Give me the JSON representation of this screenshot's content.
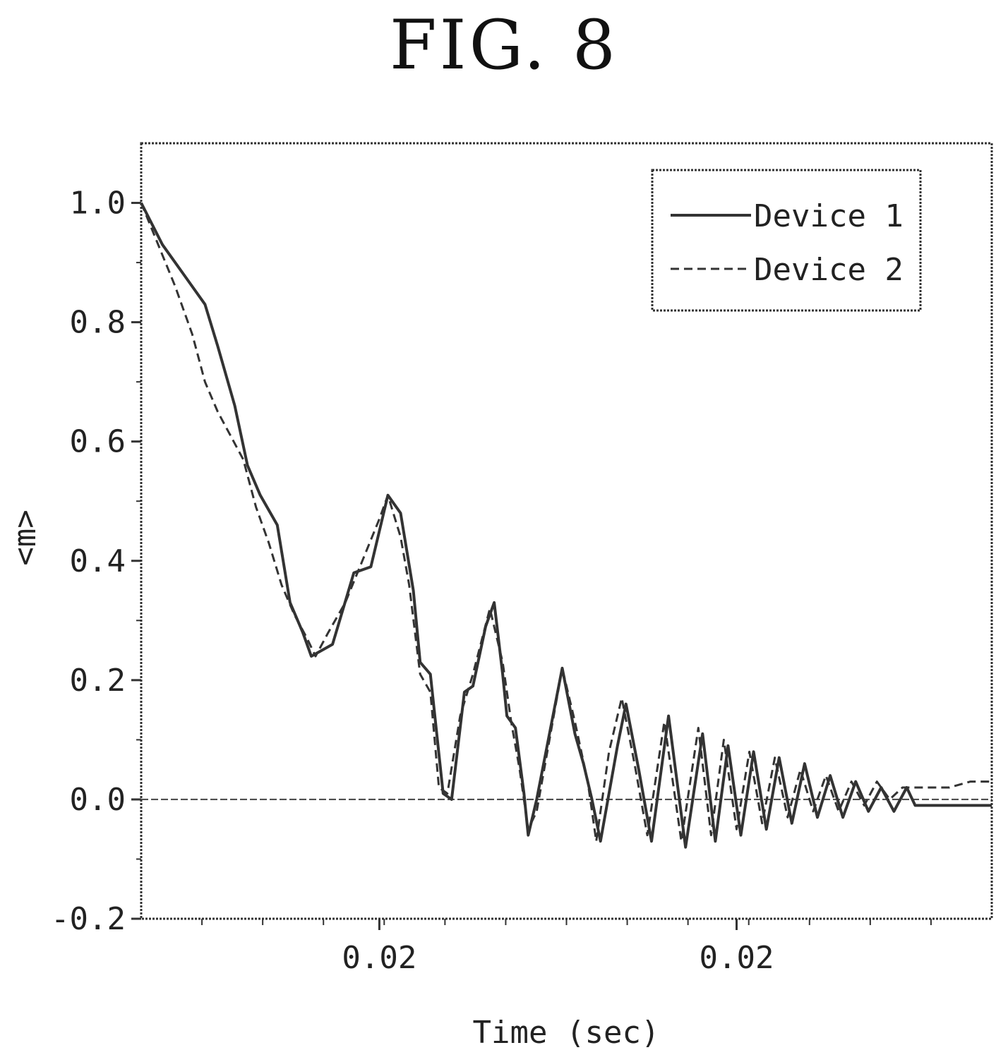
{
  "figure_title": "FIG. 8",
  "chart_data": {
    "type": "line",
    "xlabel": "Time (sec)",
    "ylabel": "<m>",
    "xlim": [
      0,
      100
    ],
    "ylim": [
      -0.2,
      1.1
    ],
    "x_ticks": [
      {
        "x": 28,
        "label": "0.02"
      },
      {
        "x": 70,
        "label": "0.02"
      }
    ],
    "y_ticks": [
      -0.2,
      0.0,
      0.2,
      0.4,
      0.6,
      0.8,
      1.0
    ],
    "y_tick_labels": [
      "-0.2",
      "0.0",
      "0.2",
      "0.4",
      "0.6",
      "0.8",
      "1.0"
    ],
    "zero_line": true,
    "grid": false,
    "legend": {
      "position": "top-right"
    },
    "series": [
      {
        "name": "Device 1",
        "style": "solid",
        "points": [
          [
            0,
            1.0
          ],
          [
            2.5,
            0.93
          ],
          [
            5,
            0.88
          ],
          [
            7.5,
            0.83
          ],
          [
            9,
            0.76
          ],
          [
            11,
            0.66
          ],
          [
            12.5,
            0.56
          ],
          [
            14,
            0.51
          ],
          [
            16,
            0.46
          ],
          [
            17.5,
            0.33
          ],
          [
            19,
            0.28
          ],
          [
            20,
            0.24
          ],
          [
            22.5,
            0.26
          ],
          [
            25,
            0.38
          ],
          [
            27,
            0.39
          ],
          [
            29,
            0.51
          ],
          [
            30.5,
            0.48
          ],
          [
            32,
            0.35
          ],
          [
            32.8,
            0.23
          ],
          [
            34,
            0.21
          ],
          [
            35.5,
            0.01
          ],
          [
            36.5,
            0.0
          ],
          [
            38,
            0.18
          ],
          [
            39,
            0.19
          ],
          [
            40.5,
            0.29
          ],
          [
            41.5,
            0.33
          ],
          [
            42.5,
            0.21
          ],
          [
            43,
            0.14
          ],
          [
            44,
            0.12
          ],
          [
            45,
            0.01
          ],
          [
            45.5,
            -0.06
          ],
          [
            46.5,
            0.0
          ],
          [
            48,
            0.11
          ],
          [
            49.5,
            0.22
          ],
          [
            51,
            0.11
          ],
          [
            52,
            0.06
          ],
          [
            53,
            0.0
          ],
          [
            54,
            -0.07
          ],
          [
            56,
            0.09
          ],
          [
            57,
            0.16
          ],
          [
            58.5,
            0.05
          ],
          [
            60,
            -0.07
          ],
          [
            62,
            0.14
          ],
          [
            64,
            -0.08
          ],
          [
            66,
            0.11
          ],
          [
            67.5,
            -0.07
          ],
          [
            69,
            0.09
          ],
          [
            70.5,
            -0.06
          ],
          [
            72,
            0.08
          ],
          [
            73.5,
            -0.05
          ],
          [
            75,
            0.07
          ],
          [
            76.5,
            -0.04
          ],
          [
            78,
            0.06
          ],
          [
            79.5,
            -0.03
          ],
          [
            81,
            0.04
          ],
          [
            82.5,
            -0.03
          ],
          [
            84,
            0.03
          ],
          [
            85.5,
            -0.02
          ],
          [
            87,
            0.02
          ],
          [
            88.5,
            -0.02
          ],
          [
            90,
            0.02
          ],
          [
            91,
            -0.01
          ],
          [
            92.5,
            -0.01
          ],
          [
            95,
            -0.01
          ],
          [
            97.5,
            -0.01
          ],
          [
            100,
            -0.01
          ]
        ]
      },
      {
        "name": "Device 2",
        "style": "dashed",
        "points": [
          [
            0,
            1.0
          ],
          [
            2,
            0.93
          ],
          [
            4,
            0.86
          ],
          [
            6,
            0.78
          ],
          [
            7.5,
            0.7
          ],
          [
            9,
            0.65
          ],
          [
            10.5,
            0.61
          ],
          [
            12,
            0.57
          ],
          [
            13.5,
            0.49
          ],
          [
            15,
            0.43
          ],
          [
            16.5,
            0.36
          ],
          [
            18,
            0.31
          ],
          [
            19.5,
            0.27
          ],
          [
            20.5,
            0.24
          ],
          [
            22,
            0.28
          ],
          [
            24,
            0.33
          ],
          [
            26,
            0.4
          ],
          [
            28,
            0.47
          ],
          [
            29,
            0.51
          ],
          [
            30.5,
            0.44
          ],
          [
            31.5,
            0.36
          ],
          [
            32.8,
            0.21
          ],
          [
            34,
            0.18
          ],
          [
            35,
            0.02
          ],
          [
            36,
            0.01
          ],
          [
            37.5,
            0.14
          ],
          [
            39,
            0.21
          ],
          [
            41,
            0.32
          ],
          [
            42.5,
            0.23
          ],
          [
            43.5,
            0.13
          ],
          [
            44.5,
            0.05
          ],
          [
            45.5,
            -0.05
          ],
          [
            46.5,
            -0.02
          ],
          [
            48,
            0.1
          ],
          [
            49.5,
            0.22
          ],
          [
            51,
            0.13
          ],
          [
            52.5,
            0.03
          ],
          [
            53.5,
            -0.07
          ],
          [
            55,
            0.08
          ],
          [
            56.5,
            0.17
          ],
          [
            58,
            0.06
          ],
          [
            59.5,
            -0.06
          ],
          [
            61.5,
            0.13
          ],
          [
            63.5,
            -0.07
          ],
          [
            65.5,
            0.12
          ],
          [
            67,
            -0.06
          ],
          [
            68.5,
            0.1
          ],
          [
            70,
            -0.05
          ],
          [
            71.5,
            0.08
          ],
          [
            73,
            -0.04
          ],
          [
            74.5,
            0.07
          ],
          [
            76,
            -0.03
          ],
          [
            77.5,
            0.05
          ],
          [
            79,
            -0.02
          ],
          [
            80.5,
            0.04
          ],
          [
            82,
            -0.02
          ],
          [
            83.5,
            0.03
          ],
          [
            85,
            -0.01
          ],
          [
            86.5,
            0.03
          ],
          [
            88,
            0.0
          ],
          [
            89.5,
            0.02
          ],
          [
            91,
            0.02
          ],
          [
            92.5,
            0.02
          ],
          [
            95,
            0.02
          ],
          [
            97.5,
            0.03
          ],
          [
            100,
            0.03
          ]
        ]
      }
    ]
  }
}
